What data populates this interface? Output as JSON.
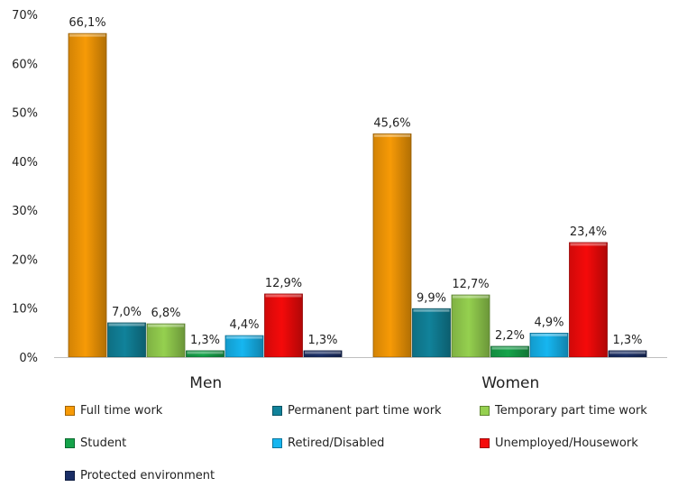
{
  "chart_data": {
    "type": "bar",
    "categories": [
      "Men",
      "Women"
    ],
    "series": [
      {
        "name": "Full time work",
        "color": "#F79A06",
        "values": [
          66.1,
          45.6
        ],
        "labels": [
          "66,1%",
          "45,6%"
        ]
      },
      {
        "name": "Permanent part time work",
        "color": "#11829A",
        "values": [
          7.0,
          9.9
        ],
        "labels": [
          "7,0%",
          "9,9%"
        ]
      },
      {
        "name": "Temporary part time work",
        "color": "#95D04F",
        "values": [
          6.8,
          12.7
        ],
        "labels": [
          "6,8%",
          "12,7%"
        ]
      },
      {
        "name": "Student",
        "color": "#15A34A",
        "values": [
          1.3,
          2.2
        ],
        "labels": [
          "1,3%",
          "2,2%"
        ]
      },
      {
        "name": "Retired/Disabled",
        "color": "#16B6F0",
        "values": [
          4.4,
          4.9
        ],
        "labels": [
          "4,4%",
          "4,9%"
        ]
      },
      {
        "name": "Unemployed/Housework",
        "color": "#F50A0A",
        "values": [
          12.9,
          23.4
        ],
        "labels": [
          "12,9%",
          "23,4%"
        ]
      },
      {
        "name": "Protected environment",
        "color": "#1A2E66",
        "values": [
          1.3,
          1.3
        ],
        "labels": [
          "1,3%",
          "1,3%"
        ]
      }
    ],
    "yticks": [
      "0%",
      "10%",
      "20%",
      "30%",
      "40%",
      "50%",
      "60%",
      "70%"
    ],
    "ylim": [
      0,
      70
    ],
    "title": "",
    "xlabel": "",
    "ylabel": "",
    "legend_position": "bottom",
    "grid": false
  }
}
